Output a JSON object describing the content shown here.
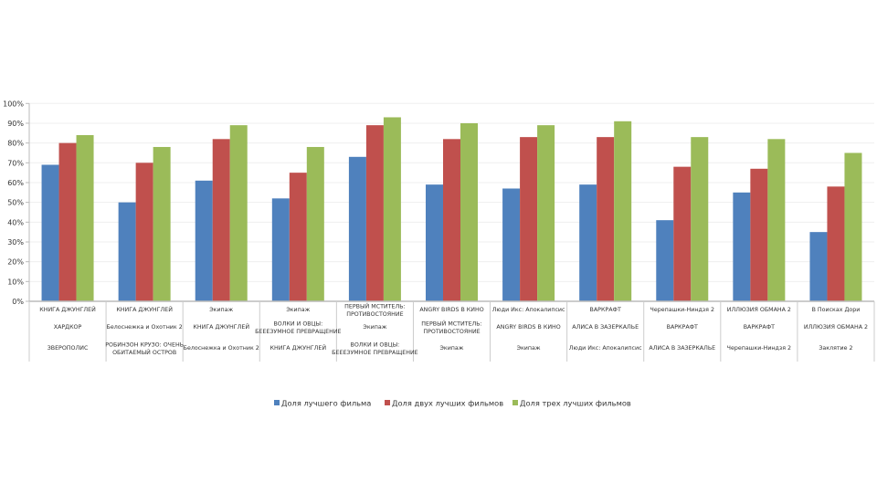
{
  "chart_data": {
    "type": "bar",
    "title": "",
    "xlabel": "",
    "ylabel": "",
    "ylim": [
      0,
      100
    ],
    "yticks": [
      "0%",
      "10%",
      "20%",
      "30%",
      "40%",
      "50%",
      "60%",
      "70%",
      "80%",
      "90%",
      "100%"
    ],
    "grid": true,
    "legend_position": "bottom",
    "categories": [
      [
        "КНИГА ДЖУНГЛЕЙ",
        "ХАРДКОР",
        "ЗВЕРОПОЛИС"
      ],
      [
        "КНИГА ДЖУНГЛЕЙ",
        "Белоснежка и Охотник 2",
        "РОБИНЗОН КРУЗО: ОЧЕНЬ|ОБИТАЕМЫЙ ОСТРОВ"
      ],
      [
        "Экипаж",
        "КНИГА ДЖУНГЛЕЙ",
        "Белоснежка и Охотник 2"
      ],
      [
        "Экипаж",
        "ВОЛКИ И ОВЦЫ:|БЕЕЕЗУМНОЕ ПРЕВРАЩЕНИЕ",
        "КНИГА ДЖУНГЛЕЙ"
      ],
      [
        "ПЕРВЫЙ МСТИТЕЛЬ:|ПРОТИВОСТОЯНИЕ",
        "Экипаж",
        "ВОЛКИ И ОВЦЫ:|БЕЕЕЗУМНОЕ ПРЕВРАЩЕНИЕ"
      ],
      [
        "ANGRY BIRDS В КИНО",
        "ПЕРВЫЙ МСТИТЕЛЬ:|ПРОТИВОСТОЯНИЕ",
        "Экипаж"
      ],
      [
        "Люди Икс: Апокалипсис",
        "ANGRY BIRDS В КИНО",
        "Экипаж"
      ],
      [
        "ВАРКРАФТ",
        "АЛИСА В ЗАЗЕРКАЛЬЕ",
        "Люди Икс: Апокалипсис"
      ],
      [
        "Черепашки-Ниндзя 2",
        "ВАРКРАФТ",
        "АЛИСА В ЗАЗЕРКАЛЬЕ"
      ],
      [
        "ИЛЛЮЗИЯ ОБМАНА 2",
        "ВАРКРАФТ",
        "Черепашки-Ниндзя 2"
      ],
      [
        "В Поисках Дори",
        "ИЛЛЮЗИЯ ОБМАНА 2",
        "Заклятие 2"
      ]
    ],
    "series": [
      {
        "name": "Доля лучшего фильма",
        "color": "#4f81bd",
        "values": [
          69,
          50,
          61,
          52,
          73,
          59,
          57,
          59,
          41,
          55,
          35
        ]
      },
      {
        "name": "Доля двух лучших фильмов",
        "color": "#c0504d",
        "values": [
          80,
          70,
          82,
          65,
          89,
          82,
          83,
          83,
          68,
          67,
          58
        ]
      },
      {
        "name": "Доля трех лучших фильмов",
        "color": "#9bbb59",
        "values": [
          84,
          78,
          89,
          78,
          93,
          90,
          89,
          91,
          83,
          82,
          75
        ]
      }
    ]
  }
}
